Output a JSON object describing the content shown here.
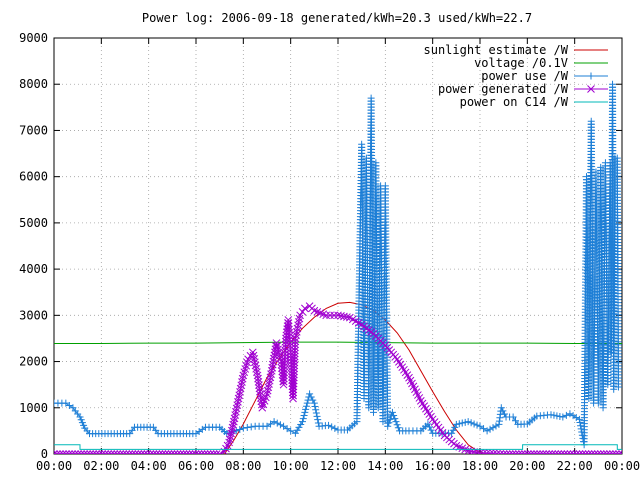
{
  "chart_data": {
    "type": "line",
    "title": "Power log: 2006-09-18 generated/kWh=20.3 used/kWh=22.7",
    "xlabel": "",
    "ylabel": "",
    "x_range_hours": [
      0,
      24
    ],
    "ylim": [
      0,
      9000
    ],
    "grid": true,
    "legend_position": "top-right",
    "x_tick_labels": [
      "00:00",
      "02:00",
      "04:00",
      "06:00",
      "08:00",
      "10:00",
      "12:00",
      "14:00",
      "16:00",
      "18:00",
      "20:00",
      "22:00",
      "00:00"
    ],
    "y_tick_labels": [
      "0",
      "1000",
      "2000",
      "3000",
      "4000",
      "5000",
      "6000",
      "7000",
      "8000",
      "9000"
    ],
    "series": [
      {
        "name": "sunlight estimate /W",
        "color": "#cc0000",
        "marker": "none",
        "points": [
          [
            7.2,
            0
          ],
          [
            7.6,
            300
          ],
          [
            8.0,
            650
          ],
          [
            8.5,
            1150
          ],
          [
            9.0,
            1650
          ],
          [
            9.5,
            2050
          ],
          [
            10.0,
            2420
          ],
          [
            10.5,
            2720
          ],
          [
            11.0,
            2960
          ],
          [
            11.5,
            3150
          ],
          [
            12.0,
            3260
          ],
          [
            12.5,
            3280
          ],
          [
            13.0,
            3230
          ],
          [
            13.5,
            3100
          ],
          [
            14.0,
            2900
          ],
          [
            14.5,
            2620
          ],
          [
            15.0,
            2250
          ],
          [
            15.5,
            1800
          ],
          [
            16.0,
            1350
          ],
          [
            16.5,
            920
          ],
          [
            17.0,
            520
          ],
          [
            17.5,
            200
          ],
          [
            18.0,
            30
          ],
          [
            18.3,
            0
          ]
        ]
      },
      {
        "name": "voltage /0.1V",
        "color": "#00a000",
        "marker": "none",
        "points": [
          [
            0.0,
            2390
          ],
          [
            2.0,
            2390
          ],
          [
            4.0,
            2400
          ],
          [
            6.0,
            2400
          ],
          [
            8.0,
            2410
          ],
          [
            10.0,
            2420
          ],
          [
            12.0,
            2420
          ],
          [
            14.0,
            2410
          ],
          [
            16.0,
            2400
          ],
          [
            18.0,
            2400
          ],
          [
            20.0,
            2400
          ],
          [
            22.0,
            2390
          ],
          [
            24.0,
            2390
          ]
        ]
      },
      {
        "name": "power use /W",
        "color": "#1e7fd6",
        "marker": "plus",
        "points": [
          [
            0.0,
            1100
          ],
          [
            0.5,
            1100
          ],
          [
            0.8,
            1000
          ],
          [
            1.1,
            800
          ],
          [
            1.3,
            560
          ],
          [
            1.5,
            440
          ],
          [
            3.2,
            440
          ],
          [
            3.4,
            580
          ],
          [
            4.2,
            580
          ],
          [
            4.4,
            440
          ],
          [
            6.0,
            440
          ],
          [
            6.4,
            580
          ],
          [
            7.0,
            580
          ],
          [
            7.3,
            440
          ],
          [
            7.7,
            500
          ],
          [
            8.0,
            560
          ],
          [
            8.5,
            600
          ],
          [
            9.0,
            600
          ],
          [
            9.3,
            700
          ],
          [
            9.7,
            600
          ],
          [
            10.0,
            500
          ],
          [
            10.2,
            450
          ],
          [
            10.5,
            700
          ],
          [
            10.8,
            1300
          ],
          [
            11.0,
            1100
          ],
          [
            11.2,
            600
          ],
          [
            11.6,
            620
          ],
          [
            12.0,
            520
          ],
          [
            12.4,
            520
          ],
          [
            12.8,
            700
          ],
          [
            13.0,
            6700
          ],
          [
            13.1,
            1200
          ],
          [
            13.2,
            6400
          ],
          [
            13.3,
            1000
          ],
          [
            13.4,
            7700
          ],
          [
            13.5,
            900
          ],
          [
            13.6,
            6300
          ],
          [
            13.7,
            1000
          ],
          [
            13.8,
            5800
          ],
          [
            13.9,
            700
          ],
          [
            14.0,
            5800
          ],
          [
            14.1,
            600
          ],
          [
            14.3,
            900
          ],
          [
            14.6,
            500
          ],
          [
            15.0,
            500
          ],
          [
            15.5,
            500
          ],
          [
            15.8,
            650
          ],
          [
            16.0,
            450
          ],
          [
            16.8,
            450
          ],
          [
            17.0,
            640
          ],
          [
            17.5,
            700
          ],
          [
            18.0,
            600
          ],
          [
            18.3,
            500
          ],
          [
            18.8,
            640
          ],
          [
            18.9,
            1000
          ],
          [
            19.1,
            800
          ],
          [
            19.4,
            800
          ],
          [
            19.6,
            640
          ],
          [
            20.0,
            650
          ],
          [
            20.4,
            820
          ],
          [
            21.0,
            850
          ],
          [
            21.5,
            800
          ],
          [
            21.8,
            870
          ],
          [
            22.2,
            750
          ],
          [
            22.4,
            200
          ],
          [
            22.5,
            6000
          ],
          [
            22.6,
            1200
          ],
          [
            22.7,
            7200
          ],
          [
            22.8,
            1100
          ],
          [
            22.9,
            6100
          ],
          [
            23.0,
            1100
          ],
          [
            23.1,
            6200
          ],
          [
            23.2,
            1000
          ],
          [
            23.3,
            6300
          ],
          [
            23.4,
            1500
          ],
          [
            23.5,
            6300
          ],
          [
            23.55,
            2200
          ],
          [
            23.6,
            8000
          ],
          [
            23.65,
            1400
          ],
          [
            23.7,
            6400
          ],
          [
            23.8,
            6400
          ],
          [
            23.85,
            1450
          ]
        ]
      },
      {
        "name": "power generated /W",
        "color": "#a000d0",
        "marker": "cross",
        "points": [
          [
            0.0,
            0
          ],
          [
            7.0,
            0
          ],
          [
            7.2,
            50
          ],
          [
            7.4,
            250
          ],
          [
            7.6,
            700
          ],
          [
            7.8,
            1200
          ],
          [
            8.0,
            1700
          ],
          [
            8.2,
            2050
          ],
          [
            8.4,
            2200
          ],
          [
            8.6,
            1700
          ],
          [
            8.8,
            1000
          ],
          [
            9.0,
            1300
          ],
          [
            9.2,
            1800
          ],
          [
            9.4,
            2400
          ],
          [
            9.6,
            2000
          ],
          [
            9.7,
            1500
          ],
          [
            9.8,
            2500
          ],
          [
            9.9,
            2900
          ],
          [
            10.0,
            2200
          ],
          [
            10.1,
            1200
          ],
          [
            10.2,
            2500
          ],
          [
            10.4,
            3000
          ],
          [
            10.6,
            3150
          ],
          [
            10.8,
            3200
          ],
          [
            11.0,
            3100
          ],
          [
            11.5,
            3000
          ],
          [
            12.0,
            3000
          ],
          [
            12.5,
            2950
          ],
          [
            13.0,
            2800
          ],
          [
            13.5,
            2600
          ],
          [
            14.0,
            2350
          ],
          [
            14.5,
            2050
          ],
          [
            15.0,
            1650
          ],
          [
            15.5,
            1150
          ],
          [
            16.0,
            750
          ],
          [
            16.5,
            400
          ],
          [
            17.0,
            180
          ],
          [
            17.5,
            70
          ],
          [
            18.0,
            20
          ],
          [
            19.0,
            0
          ],
          [
            24.0,
            0
          ]
        ]
      },
      {
        "name": "power on C14 /W",
        "color": "#00b8b8",
        "marker": "none",
        "points": [
          [
            0.0,
            200
          ],
          [
            1.1,
            200
          ],
          [
            1.1,
            100
          ],
          [
            19.8,
            100
          ],
          [
            19.8,
            200
          ],
          [
            23.8,
            200
          ],
          [
            23.8,
            100
          ],
          [
            24.0,
            100
          ]
        ]
      }
    ]
  }
}
